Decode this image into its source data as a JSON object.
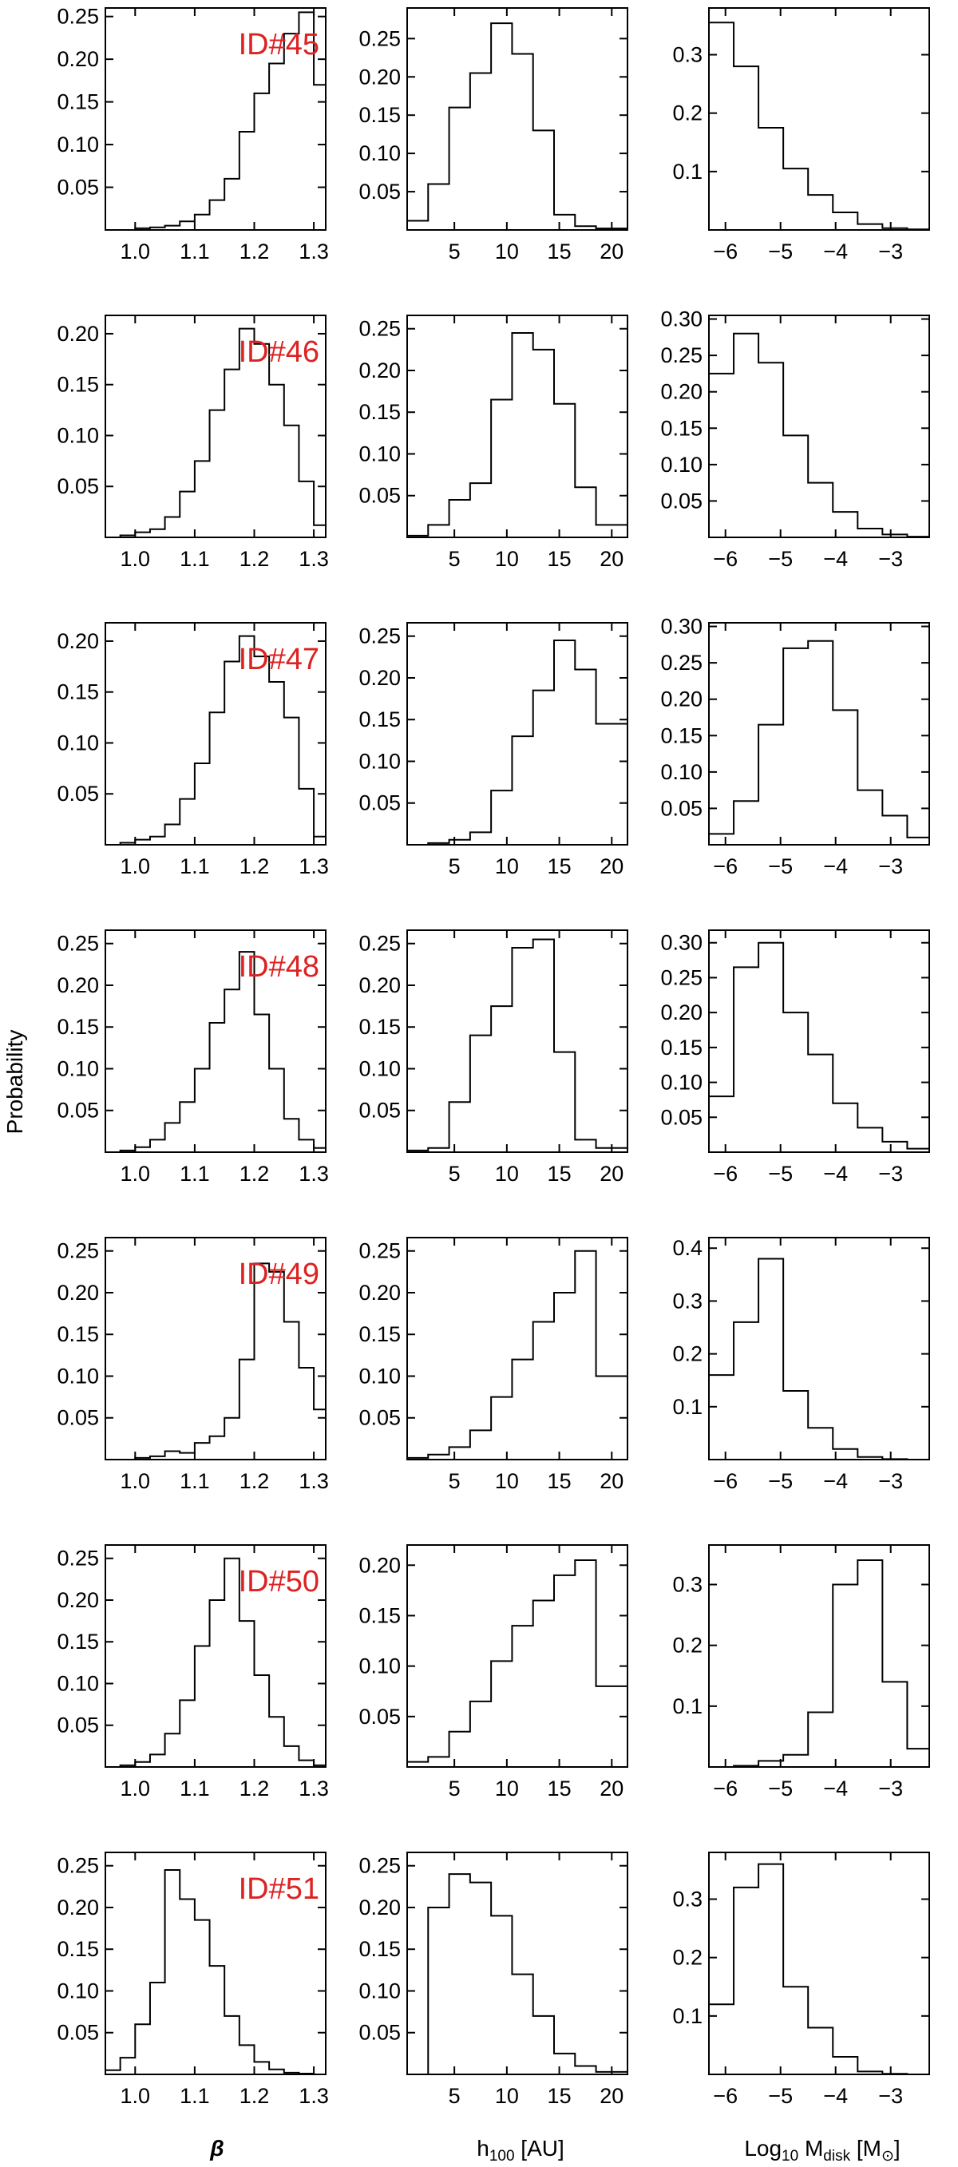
{
  "figure": {
    "ylabel": "Probability",
    "column_xlabels": {
      "beta": "β",
      "h100_main": "h",
      "h100_sub": "100",
      "h100_unit": " [AU]",
      "mdisk_log": "Log",
      "mdisk_log_sub": "10",
      "mdisk_m": " M",
      "mdisk_sub": "disk",
      "mdisk_unit_open": " [M",
      "mdisk_unit_close": "]"
    }
  },
  "chart_data": [
    {
      "type": "bar",
      "row": 0,
      "col": 0,
      "panel_label": "ID#45",
      "xlim": [
        0.95,
        1.32
      ],
      "ylim": [
        0,
        0.26
      ],
      "xticks": [
        1.0,
        1.1,
        1.2,
        1.3
      ],
      "xtick_labels": [
        "1.0",
        "1.1",
        "1.2",
        "1.3"
      ],
      "yticks": [
        0.05,
        0.1,
        0.15,
        0.2,
        0.25
      ],
      "ytick_labels": [
        "0.05",
        "0.10",
        "0.15",
        "0.20",
        "0.25"
      ],
      "edges": [
        0.95,
        0.975,
        1.0,
        1.025,
        1.05,
        1.075,
        1.1,
        1.125,
        1.15,
        1.175,
        1.2,
        1.225,
        1.25,
        1.275,
        1.3,
        1.32
      ],
      "values": [
        0.0,
        0.0,
        0.002,
        0.003,
        0.005,
        0.01,
        0.018,
        0.035,
        0.06,
        0.115,
        0.16,
        0.195,
        0.23,
        0.255,
        0.17
      ]
    },
    {
      "type": "bar",
      "row": 0,
      "col": 1,
      "xlim": [
        0.5,
        21.5
      ],
      "ylim": [
        0,
        0.29
      ],
      "xticks": [
        5,
        10,
        15,
        20
      ],
      "xtick_labels": [
        "5",
        "10",
        "15",
        "20"
      ],
      "yticks": [
        0.05,
        0.1,
        0.15,
        0.2,
        0.25
      ],
      "ytick_labels": [
        "0.05",
        "0.10",
        "0.15",
        "0.20",
        "0.25"
      ],
      "edges": [
        0.5,
        2.5,
        4.5,
        6.5,
        8.5,
        10.5,
        12.5,
        14.5,
        16.5,
        18.5,
        21.5
      ],
      "values": [
        0.012,
        0.06,
        0.16,
        0.205,
        0.27,
        0.23,
        0.13,
        0.02,
        0.005,
        0.002
      ]
    },
    {
      "type": "bar",
      "row": 0,
      "col": 2,
      "xlim": [
        -6.3,
        -2.3
      ],
      "ylim": [
        0,
        0.38
      ],
      "xticks": [
        -6,
        -5,
        -4,
        -3
      ],
      "xtick_labels": [
        "−6",
        "−5",
        "−4",
        "−3"
      ],
      "yticks": [
        0.1,
        0.2,
        0.3
      ],
      "ytick_labels": [
        "0.1",
        "0.2",
        "0.3"
      ],
      "edges": [
        -6.3,
        -5.85,
        -5.4,
        -4.95,
        -4.5,
        -4.05,
        -3.6,
        -3.15,
        -2.7,
        -2.3
      ],
      "values": [
        0.355,
        0.28,
        0.175,
        0.105,
        0.06,
        0.03,
        0.01,
        0.003,
        0.001
      ]
    },
    {
      "type": "bar",
      "row": 1,
      "col": 0,
      "panel_label": "ID#46",
      "xlim": [
        0.95,
        1.32
      ],
      "ylim": [
        0,
        0.218
      ],
      "xticks": [
        1.0,
        1.1,
        1.2,
        1.3
      ],
      "xtick_labels": [
        "1.0",
        "1.1",
        "1.2",
        "1.3"
      ],
      "yticks": [
        0.05,
        0.1,
        0.15,
        0.2
      ],
      "ytick_labels": [
        "0.05",
        "0.10",
        "0.15",
        "0.20"
      ],
      "edges": [
        0.95,
        0.975,
        1.0,
        1.025,
        1.05,
        1.075,
        1.1,
        1.125,
        1.15,
        1.175,
        1.2,
        1.225,
        1.25,
        1.275,
        1.3,
        1.32
      ],
      "values": [
        0.0,
        0.002,
        0.005,
        0.008,
        0.02,
        0.045,
        0.075,
        0.125,
        0.165,
        0.205,
        0.19,
        0.15,
        0.11,
        0.055,
        0.012
      ]
    },
    {
      "type": "bar",
      "row": 1,
      "col": 1,
      "xlim": [
        0.5,
        21.5
      ],
      "ylim": [
        0,
        0.266
      ],
      "xticks": [
        5,
        10,
        15,
        20
      ],
      "xtick_labels": [
        "5",
        "10",
        "15",
        "20"
      ],
      "yticks": [
        0.05,
        0.1,
        0.15,
        0.2,
        0.25
      ],
      "ytick_labels": [
        "0.05",
        "0.10",
        "0.15",
        "0.20",
        "0.25"
      ],
      "edges": [
        0.5,
        2.5,
        4.5,
        6.5,
        8.5,
        10.5,
        12.5,
        14.5,
        16.5,
        18.5,
        21.5
      ],
      "values": [
        0.002,
        0.015,
        0.045,
        0.065,
        0.165,
        0.245,
        0.225,
        0.16,
        0.06,
        0.015
      ]
    },
    {
      "type": "bar",
      "row": 1,
      "col": 2,
      "xlim": [
        -6.3,
        -2.3
      ],
      "ylim": [
        0,
        0.305
      ],
      "xticks": [
        -6,
        -5,
        -4,
        -3
      ],
      "xtick_labels": [
        "−6",
        "−5",
        "−4",
        "−3"
      ],
      "yticks": [
        0.05,
        0.1,
        0.15,
        0.2,
        0.25,
        0.3
      ],
      "ytick_labels": [
        "0.05",
        "0.10",
        "0.15",
        "0.20",
        "0.25",
        "0.30"
      ],
      "edges": [
        -6.3,
        -5.85,
        -5.4,
        -4.95,
        -4.5,
        -4.05,
        -3.6,
        -3.15,
        -2.7,
        -2.3
      ],
      "values": [
        0.225,
        0.28,
        0.24,
        0.14,
        0.075,
        0.035,
        0.012,
        0.004,
        0.001
      ]
    },
    {
      "type": "bar",
      "row": 2,
      "col": 0,
      "panel_label": "ID#47",
      "xlim": [
        0.95,
        1.32
      ],
      "ylim": [
        0,
        0.218
      ],
      "xticks": [
        1.0,
        1.1,
        1.2,
        1.3
      ],
      "xtick_labels": [
        "1.0",
        "1.1",
        "1.2",
        "1.3"
      ],
      "yticks": [
        0.05,
        0.1,
        0.15,
        0.2
      ],
      "ytick_labels": [
        "0.05",
        "0.10",
        "0.15",
        "0.20"
      ],
      "edges": [
        0.95,
        0.975,
        1.0,
        1.025,
        1.05,
        1.075,
        1.1,
        1.125,
        1.15,
        1.175,
        1.2,
        1.225,
        1.25,
        1.275,
        1.3,
        1.32
      ],
      "values": [
        0.0,
        0.002,
        0.005,
        0.008,
        0.02,
        0.045,
        0.08,
        0.13,
        0.18,
        0.205,
        0.185,
        0.16,
        0.125,
        0.055,
        0.008
      ]
    },
    {
      "type": "bar",
      "row": 2,
      "col": 1,
      "xlim": [
        0.5,
        21.5
      ],
      "ylim": [
        0,
        0.266
      ],
      "xticks": [
        5,
        10,
        15,
        20
      ],
      "xtick_labels": [
        "5",
        "10",
        "15",
        "20"
      ],
      "yticks": [
        0.05,
        0.1,
        0.15,
        0.2,
        0.25
      ],
      "ytick_labels": [
        "0.05",
        "0.10",
        "0.15",
        "0.20",
        "0.25"
      ],
      "edges": [
        0.5,
        2.5,
        4.5,
        6.5,
        8.5,
        10.5,
        12.5,
        14.5,
        16.5,
        18.5,
        21.5
      ],
      "values": [
        0.0,
        0.002,
        0.006,
        0.015,
        0.065,
        0.13,
        0.185,
        0.245,
        0.21,
        0.145
      ]
    },
    {
      "type": "bar",
      "row": 2,
      "col": 2,
      "xlim": [
        -6.3,
        -2.3
      ],
      "ylim": [
        0,
        0.305
      ],
      "xticks": [
        -6,
        -5,
        -4,
        -3
      ],
      "xtick_labels": [
        "−6",
        "−5",
        "−4",
        "−3"
      ],
      "yticks": [
        0.05,
        0.1,
        0.15,
        0.2,
        0.25,
        0.3
      ],
      "ytick_labels": [
        "0.05",
        "0.10",
        "0.15",
        "0.20",
        "0.25",
        "0.30"
      ],
      "edges": [
        -6.3,
        -5.85,
        -5.4,
        -4.95,
        -4.5,
        -4.05,
        -3.6,
        -3.15,
        -2.7,
        -2.3
      ],
      "values": [
        0.015,
        0.06,
        0.165,
        0.27,
        0.28,
        0.185,
        0.075,
        0.04,
        0.01
      ]
    },
    {
      "type": "bar",
      "row": 3,
      "col": 0,
      "panel_label": "ID#48",
      "xlim": [
        0.95,
        1.32
      ],
      "ylim": [
        0,
        0.266
      ],
      "xticks": [
        1.0,
        1.1,
        1.2,
        1.3
      ],
      "xtick_labels": [
        "1.0",
        "1.1",
        "1.2",
        "1.3"
      ],
      "yticks": [
        0.05,
        0.1,
        0.15,
        0.2,
        0.25
      ],
      "ytick_labels": [
        "0.05",
        "0.10",
        "0.15",
        "0.20",
        "0.25"
      ],
      "edges": [
        0.95,
        0.975,
        1.0,
        1.025,
        1.05,
        1.075,
        1.1,
        1.125,
        1.15,
        1.175,
        1.2,
        1.225,
        1.25,
        1.275,
        1.3,
        1.32
      ],
      "values": [
        0.0,
        0.002,
        0.006,
        0.015,
        0.035,
        0.06,
        0.1,
        0.155,
        0.195,
        0.24,
        0.165,
        0.1,
        0.04,
        0.015,
        0.005
      ]
    },
    {
      "type": "bar",
      "row": 3,
      "col": 1,
      "xlim": [
        0.5,
        21.5
      ],
      "ylim": [
        0,
        0.266
      ],
      "xticks": [
        5,
        10,
        15,
        20
      ],
      "xtick_labels": [
        "5",
        "10",
        "15",
        "20"
      ],
      "yticks": [
        0.05,
        0.1,
        0.15,
        0.2,
        0.25
      ],
      "ytick_labels": [
        "0.05",
        "0.10",
        "0.15",
        "0.20",
        "0.25"
      ],
      "edges": [
        0.5,
        2.5,
        4.5,
        6.5,
        8.5,
        10.5,
        12.5,
        14.5,
        16.5,
        18.5,
        21.5
      ],
      "values": [
        0.002,
        0.005,
        0.06,
        0.14,
        0.175,
        0.245,
        0.255,
        0.12,
        0.015,
        0.005
      ]
    },
    {
      "type": "bar",
      "row": 3,
      "col": 2,
      "xlim": [
        -6.3,
        -2.3
      ],
      "ylim": [
        0,
        0.318
      ],
      "xticks": [
        -6,
        -5,
        -4,
        -3
      ],
      "xtick_labels": [
        "−6",
        "−5",
        "−4",
        "−3"
      ],
      "yticks": [
        0.05,
        0.1,
        0.15,
        0.2,
        0.25,
        0.3
      ],
      "ytick_labels": [
        "0.05",
        "0.10",
        "0.15",
        "0.20",
        "0.25",
        "0.30"
      ],
      "edges": [
        -6.3,
        -5.85,
        -5.4,
        -4.95,
        -4.5,
        -4.05,
        -3.6,
        -3.15,
        -2.7,
        -2.3
      ],
      "values": [
        0.08,
        0.265,
        0.3,
        0.2,
        0.14,
        0.07,
        0.035,
        0.015,
        0.005
      ]
    },
    {
      "type": "bar",
      "row": 4,
      "col": 0,
      "panel_label": "ID#49",
      "xlim": [
        0.95,
        1.32
      ],
      "ylim": [
        0,
        0.266
      ],
      "xticks": [
        1.0,
        1.1,
        1.2,
        1.3
      ],
      "xtick_labels": [
        "1.0",
        "1.1",
        "1.2",
        "1.3"
      ],
      "yticks": [
        0.05,
        0.1,
        0.15,
        0.2,
        0.25
      ],
      "ytick_labels": [
        "0.05",
        "0.10",
        "0.15",
        "0.20",
        "0.25"
      ],
      "edges": [
        0.95,
        0.975,
        1.0,
        1.025,
        1.05,
        1.075,
        1.1,
        1.125,
        1.15,
        1.175,
        1.2,
        1.225,
        1.25,
        1.275,
        1.3,
        1.32
      ],
      "values": [
        0.0,
        0.0,
        0.002,
        0.004,
        0.01,
        0.008,
        0.02,
        0.028,
        0.05,
        0.12,
        0.235,
        0.225,
        0.165,
        0.11,
        0.06
      ]
    },
    {
      "type": "bar",
      "row": 4,
      "col": 1,
      "xlim": [
        0.5,
        21.5
      ],
      "ylim": [
        0,
        0.266
      ],
      "xticks": [
        5,
        10,
        15,
        20
      ],
      "xtick_labels": [
        "5",
        "10",
        "15",
        "20"
      ],
      "yticks": [
        0.05,
        0.1,
        0.15,
        0.2,
        0.25
      ],
      "ytick_labels": [
        "0.05",
        "0.10",
        "0.15",
        "0.20",
        "0.25"
      ],
      "edges": [
        0.5,
        2.5,
        4.5,
        6.5,
        8.5,
        10.5,
        12.5,
        14.5,
        16.5,
        18.5,
        21.5
      ],
      "values": [
        0.002,
        0.006,
        0.015,
        0.035,
        0.075,
        0.12,
        0.165,
        0.2,
        0.25,
        0.1
      ]
    },
    {
      "type": "bar",
      "row": 4,
      "col": 2,
      "xlim": [
        -6.3,
        -2.3
      ],
      "ylim": [
        0,
        0.42
      ],
      "xticks": [
        -6,
        -5,
        -4,
        -3
      ],
      "xtick_labels": [
        "−6",
        "−5",
        "−4",
        "−3"
      ],
      "yticks": [
        0.1,
        0.2,
        0.3,
        0.4
      ],
      "ytick_labels": [
        "0.1",
        "0.2",
        "0.3",
        "0.4"
      ],
      "edges": [
        -6.3,
        -5.85,
        -5.4,
        -4.95,
        -4.5,
        -4.05,
        -3.6,
        -3.15,
        -2.7,
        -2.3
      ],
      "values": [
        0.16,
        0.26,
        0.38,
        0.13,
        0.06,
        0.02,
        0.005,
        0.001,
        0.0
      ]
    },
    {
      "type": "bar",
      "row": 5,
      "col": 0,
      "panel_label": "ID#50",
      "xlim": [
        0.95,
        1.32
      ],
      "ylim": [
        0,
        0.266
      ],
      "xticks": [
        1.0,
        1.1,
        1.2,
        1.3
      ],
      "xtick_labels": [
        "1.0",
        "1.1",
        "1.2",
        "1.3"
      ],
      "yticks": [
        0.05,
        0.1,
        0.15,
        0.2,
        0.25
      ],
      "ytick_labels": [
        "0.05",
        "0.10",
        "0.15",
        "0.20",
        "0.25"
      ],
      "edges": [
        0.95,
        0.975,
        1.0,
        1.025,
        1.05,
        1.075,
        1.1,
        1.125,
        1.15,
        1.175,
        1.2,
        1.225,
        1.25,
        1.275,
        1.3,
        1.32
      ],
      "values": [
        0.0,
        0.002,
        0.006,
        0.015,
        0.04,
        0.08,
        0.145,
        0.2,
        0.25,
        0.175,
        0.11,
        0.06,
        0.025,
        0.008,
        0.002
      ]
    },
    {
      "type": "bar",
      "row": 5,
      "col": 1,
      "xlim": [
        0.5,
        21.5
      ],
      "ylim": [
        0,
        0.22
      ],
      "xticks": [
        5,
        10,
        15,
        20
      ],
      "xtick_labels": [
        "5",
        "10",
        "15",
        "20"
      ],
      "yticks": [
        0.05,
        0.1,
        0.15,
        0.2
      ],
      "ytick_labels": [
        "0.05",
        "0.10",
        "0.15",
        "0.20"
      ],
      "edges": [
        0.5,
        2.5,
        4.5,
        6.5,
        8.5,
        10.5,
        12.5,
        14.5,
        16.5,
        18.5,
        21.5
      ],
      "values": [
        0.005,
        0.01,
        0.035,
        0.065,
        0.105,
        0.14,
        0.165,
        0.19,
        0.205,
        0.08
      ]
    },
    {
      "type": "bar",
      "row": 5,
      "col": 2,
      "xlim": [
        -6.3,
        -2.3
      ],
      "ylim": [
        0,
        0.365
      ],
      "xticks": [
        -6,
        -5,
        -4,
        -3
      ],
      "xtick_labels": [
        "−6",
        "−5",
        "−4",
        "−3"
      ],
      "yticks": [
        0.1,
        0.2,
        0.3
      ],
      "ytick_labels": [
        "0.1",
        "0.2",
        "0.3"
      ],
      "edges": [
        -6.3,
        -5.85,
        -5.4,
        -4.95,
        -4.5,
        -4.05,
        -3.6,
        -3.15,
        -2.7,
        -2.3
      ],
      "values": [
        0.0,
        0.002,
        0.01,
        0.02,
        0.09,
        0.3,
        0.34,
        0.14,
        0.03
      ]
    },
    {
      "type": "bar",
      "row": 6,
      "col": 0,
      "panel_label": "ID#51",
      "xlim": [
        0.95,
        1.32
      ],
      "ylim": [
        0,
        0.266
      ],
      "xticks": [
        1.0,
        1.1,
        1.2,
        1.3
      ],
      "xtick_labels": [
        "1.0",
        "1.1",
        "1.2",
        "1.3"
      ],
      "yticks": [
        0.05,
        0.1,
        0.15,
        0.2,
        0.25
      ],
      "ytick_labels": [
        "0.05",
        "0.10",
        "0.15",
        "0.20",
        "0.25"
      ],
      "edges": [
        0.95,
        0.975,
        1.0,
        1.025,
        1.05,
        1.075,
        1.1,
        1.125,
        1.15,
        1.175,
        1.2,
        1.225,
        1.25,
        1.275,
        1.3,
        1.32
      ],
      "values": [
        0.005,
        0.02,
        0.06,
        0.11,
        0.245,
        0.21,
        0.185,
        0.13,
        0.07,
        0.035,
        0.015,
        0.006,
        0.002,
        0.001,
        0.0
      ]
    },
    {
      "type": "bar",
      "row": 6,
      "col": 1,
      "xlim": [
        0.5,
        21.5
      ],
      "ylim": [
        0,
        0.266
      ],
      "xticks": [
        5,
        10,
        15,
        20
      ],
      "xtick_labels": [
        "5",
        "10",
        "15",
        "20"
      ],
      "yticks": [
        0.05,
        0.1,
        0.15,
        0.2,
        0.25
      ],
      "ytick_labels": [
        "0.05",
        "0.10",
        "0.15",
        "0.20",
        "0.25"
      ],
      "edges": [
        0.5,
        2.5,
        4.5,
        6.5,
        8.5,
        10.5,
        12.5,
        14.5,
        16.5,
        18.5,
        21.5
      ],
      "values": [
        0.0,
        0.2,
        0.24,
        0.23,
        0.19,
        0.12,
        0.07,
        0.025,
        0.01,
        0.003
      ]
    },
    {
      "type": "bar",
      "row": 6,
      "col": 2,
      "xlim": [
        -6.3,
        -2.3
      ],
      "ylim": [
        0,
        0.38
      ],
      "xticks": [
        -6,
        -5,
        -4,
        -3
      ],
      "xtick_labels": [
        "−6",
        "−5",
        "−4",
        "−3"
      ],
      "yticks": [
        0.1,
        0.2,
        0.3
      ],
      "ytick_labels": [
        "0.1",
        "0.2",
        "0.3"
      ],
      "edges": [
        -6.3,
        -5.85,
        -5.4,
        -4.95,
        -4.5,
        -4.05,
        -3.6,
        -3.15,
        -2.7,
        -2.3
      ],
      "values": [
        0.12,
        0.32,
        0.36,
        0.15,
        0.08,
        0.03,
        0.005,
        0.001,
        0.0
      ]
    }
  ]
}
